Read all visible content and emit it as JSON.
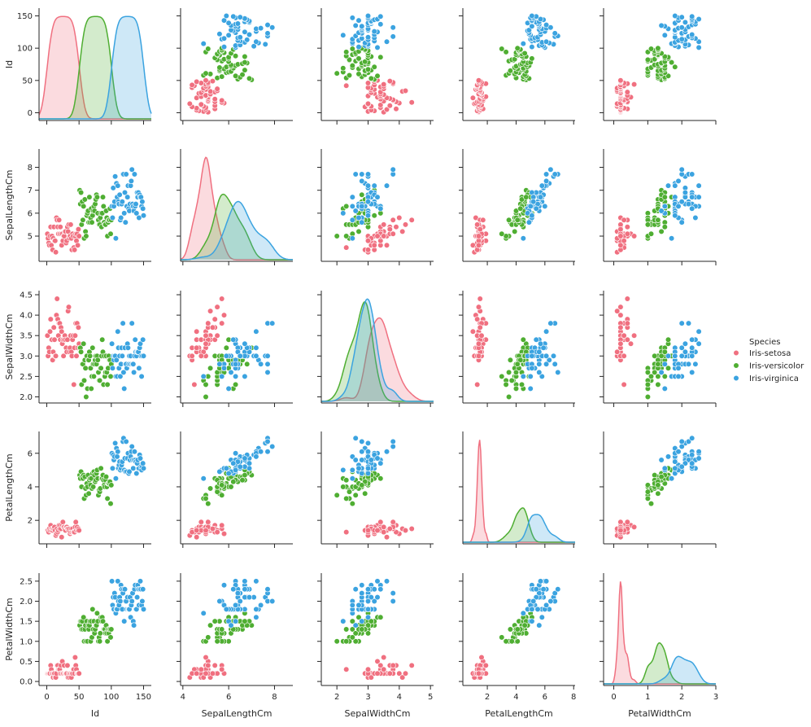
{
  "chart_data": {
    "type": "scatter",
    "variables": [
      "Id",
      "SepalLengthCm",
      "SepalWidthCm",
      "PetalLengthCm",
      "PetalWidthCm"
    ],
    "axes": {
      "Id": {
        "range": [
          -12,
          162
        ],
        "ticks": [
          0,
          50,
          100,
          150
        ],
        "tick_labels": [
          "0",
          "50",
          "100",
          "150"
        ]
      },
      "SepalLengthCm": {
        "range": [
          3.9,
          8.8
        ],
        "ticks": [
          4,
          6,
          8
        ],
        "tick_labels": [
          "4",
          "6",
          "8"
        ],
        "yticks": [
          5,
          6,
          7,
          8
        ],
        "ytick_labels": [
          "5",
          "6",
          "7",
          "8"
        ]
      },
      "SepalWidthCm": {
        "range": [
          1.5,
          5.1
        ],
        "ticks": [
          2,
          3,
          4,
          5
        ],
        "tick_labels": [
          "2",
          "3",
          "4",
          "5"
        ],
        "yrange": [
          1.85,
          4.6
        ],
        "yticks": [
          2.0,
          2.5,
          3.0,
          3.5,
          4.0,
          4.5
        ],
        "ytick_labels": [
          "2.0",
          "2.5",
          "3.0",
          "3.5",
          "4.0",
          "4.5"
        ]
      },
      "PetalLengthCm": {
        "range": [
          0.3,
          8.1
        ],
        "ticks": [
          2,
          4,
          6,
          8
        ],
        "tick_labels": [
          "2",
          "4",
          "6",
          "8"
        ],
        "yrange": [
          0.6,
          7.3
        ],
        "yticks": [
          2,
          4,
          6
        ],
        "ytick_labels": [
          "2",
          "4",
          "6"
        ]
      },
      "PetalWidthCm": {
        "range": [
          -0.3,
          3.0
        ],
        "ticks": [
          0,
          1,
          2,
          3
        ],
        "tick_labels": [
          "0",
          "1",
          "2",
          "3"
        ],
        "yrange": [
          -0.1,
          2.7
        ],
        "yticks": [
          0.0,
          0.5,
          1.0,
          1.5,
          2.0,
          2.5
        ],
        "ytick_labels": [
          "0.0",
          "0.5",
          "1.0",
          "1.5",
          "2.0",
          "2.5"
        ]
      }
    },
    "legend": {
      "title": "Species",
      "placement": "right",
      "entries": [
        {
          "name": "Iris-setosa",
          "color": "#f07080"
        },
        {
          "name": "Iris-versicolor",
          "color": "#4fae32"
        },
        {
          "name": "Iris-virginica",
          "color": "#3ba3e0"
        }
      ]
    },
    "series": [
      {
        "name": "Iris-setosa",
        "color": "#f07080",
        "Id": [
          1,
          2,
          3,
          4,
          5,
          6,
          7,
          8,
          9,
          10,
          11,
          12,
          13,
          14,
          15,
          16,
          17,
          18,
          19,
          20,
          21,
          22,
          23,
          24,
          25,
          26,
          27,
          28,
          29,
          30,
          31,
          32,
          33,
          34,
          35,
          36,
          37,
          38,
          39,
          40,
          41,
          42,
          43,
          44,
          45,
          46,
          47,
          48,
          49,
          50
        ],
        "SepalLengthCm": [
          5.1,
          4.9,
          4.7,
          4.6,
          5.0,
          5.4,
          4.6,
          5.0,
          4.4,
          4.9,
          5.4,
          4.8,
          4.8,
          4.3,
          5.8,
          5.7,
          5.4,
          5.1,
          5.7,
          5.1,
          5.4,
          5.1,
          4.6,
          5.1,
          4.8,
          5.0,
          5.0,
          5.2,
          5.2,
          4.7,
          4.8,
          5.4,
          5.2,
          5.5,
          4.9,
          5.0,
          5.5,
          4.9,
          4.4,
          5.1,
          5.0,
          4.5,
          4.4,
          5.0,
          5.1,
          4.8,
          5.1,
          4.6,
          5.3,
          5.0
        ],
        "SepalWidthCm": [
          3.5,
          3.0,
          3.2,
          3.1,
          3.6,
          3.9,
          3.4,
          3.4,
          2.9,
          3.1,
          3.7,
          3.4,
          3.0,
          3.0,
          4.0,
          4.4,
          3.9,
          3.5,
          3.8,
          3.8,
          3.4,
          3.7,
          3.6,
          3.3,
          3.4,
          3.0,
          3.4,
          3.5,
          3.4,
          3.2,
          3.1,
          3.4,
          4.1,
          4.2,
          3.1,
          3.2,
          3.5,
          3.1,
          3.0,
          3.4,
          3.5,
          2.3,
          3.2,
          3.5,
          3.8,
          3.0,
          3.8,
          3.2,
          3.7,
          3.3
        ],
        "PetalLengthCm": [
          1.4,
          1.4,
          1.3,
          1.5,
          1.4,
          1.7,
          1.4,
          1.5,
          1.4,
          1.5,
          1.5,
          1.6,
          1.4,
          1.1,
          1.2,
          1.5,
          1.3,
          1.4,
          1.7,
          1.5,
          1.7,
          1.5,
          1.0,
          1.7,
          1.9,
          1.6,
          1.6,
          1.5,
          1.4,
          1.6,
          1.6,
          1.5,
          1.5,
          1.4,
          1.5,
          1.2,
          1.3,
          1.5,
          1.3,
          1.5,
          1.3,
          1.3,
          1.3,
          1.6,
          1.9,
          1.4,
          1.6,
          1.4,
          1.5,
          1.4
        ],
        "PetalWidthCm": [
          0.2,
          0.2,
          0.2,
          0.2,
          0.2,
          0.4,
          0.3,
          0.2,
          0.2,
          0.1,
          0.2,
          0.2,
          0.1,
          0.1,
          0.2,
          0.4,
          0.4,
          0.3,
          0.3,
          0.3,
          0.2,
          0.4,
          0.2,
          0.5,
          0.2,
          0.2,
          0.4,
          0.2,
          0.2,
          0.2,
          0.2,
          0.4,
          0.1,
          0.2,
          0.1,
          0.2,
          0.2,
          0.1,
          0.2,
          0.2,
          0.3,
          0.3,
          0.2,
          0.6,
          0.4,
          0.3,
          0.2,
          0.2,
          0.2,
          0.2
        ]
      },
      {
        "name": "Iris-versicolor",
        "color": "#4fae32",
        "Id": [
          51,
          52,
          53,
          54,
          55,
          56,
          57,
          58,
          59,
          60,
          61,
          62,
          63,
          64,
          65,
          66,
          67,
          68,
          69,
          70,
          71,
          72,
          73,
          74,
          75,
          76,
          77,
          78,
          79,
          80,
          81,
          82,
          83,
          84,
          85,
          86,
          87,
          88,
          89,
          90,
          91,
          92,
          93,
          94,
          95,
          96,
          97,
          98,
          99,
          100
        ],
        "SepalLengthCm": [
          7.0,
          6.4,
          6.9,
          5.5,
          6.5,
          5.7,
          6.3,
          4.9,
          6.6,
          5.2,
          5.0,
          5.9,
          6.0,
          6.1,
          5.6,
          6.7,
          5.6,
          5.8,
          6.2,
          5.6,
          5.9,
          6.1,
          6.3,
          6.1,
          6.4,
          6.6,
          6.8,
          6.7,
          6.0,
          5.7,
          5.5,
          5.5,
          5.8,
          6.0,
          5.4,
          6.0,
          6.7,
          6.3,
          5.6,
          5.5,
          5.5,
          6.1,
          5.8,
          5.0,
          5.6,
          5.7,
          5.7,
          6.2,
          5.1,
          5.7
        ],
        "SepalWidthCm": [
          3.2,
          3.2,
          3.1,
          2.3,
          2.8,
          2.8,
          3.3,
          2.4,
          2.9,
          2.7,
          2.0,
          3.0,
          2.2,
          2.9,
          2.9,
          3.1,
          3.0,
          2.7,
          2.2,
          2.5,
          3.2,
          2.8,
          2.5,
          2.8,
          2.9,
          3.0,
          2.8,
          3.0,
          2.9,
          2.6,
          2.4,
          2.4,
          2.7,
          2.7,
          3.0,
          3.4,
          3.1,
          2.3,
          3.0,
          2.5,
          2.6,
          3.0,
          2.6,
          2.3,
          2.7,
          3.0,
          2.9,
          2.9,
          2.5,
          2.8
        ],
        "PetalLengthCm": [
          4.7,
          4.5,
          4.9,
          4.0,
          4.6,
          4.5,
          4.7,
          3.3,
          4.6,
          3.9,
          3.5,
          4.2,
          4.0,
          4.7,
          3.6,
          4.4,
          4.5,
          4.1,
          4.5,
          3.9,
          4.8,
          4.0,
          4.9,
          4.7,
          4.3,
          4.4,
          4.8,
          5.0,
          4.5,
          3.5,
          3.8,
          3.7,
          3.9,
          5.1,
          4.5,
          4.5,
          4.7,
          4.4,
          4.1,
          4.0,
          4.4,
          4.6,
          4.0,
          3.3,
          4.2,
          4.2,
          4.2,
          4.3,
          3.0,
          4.1
        ],
        "PetalWidthCm": [
          1.4,
          1.5,
          1.5,
          1.3,
          1.5,
          1.3,
          1.6,
          1.0,
          1.3,
          1.4,
          1.0,
          1.5,
          1.0,
          1.4,
          1.3,
          1.4,
          1.5,
          1.0,
          1.5,
          1.1,
          1.8,
          1.3,
          1.5,
          1.2,
          1.3,
          1.4,
          1.4,
          1.7,
          1.5,
          1.0,
          1.1,
          1.0,
          1.2,
          1.6,
          1.5,
          1.6,
          1.5,
          1.3,
          1.3,
          1.3,
          1.2,
          1.4,
          1.2,
          1.0,
          1.3,
          1.2,
          1.3,
          1.3,
          1.1,
          1.3
        ]
      },
      {
        "name": "Iris-virginica",
        "color": "#3ba3e0",
        "Id": [
          101,
          102,
          103,
          104,
          105,
          106,
          107,
          108,
          109,
          110,
          111,
          112,
          113,
          114,
          115,
          116,
          117,
          118,
          119,
          120,
          121,
          122,
          123,
          124,
          125,
          126,
          127,
          128,
          129,
          130,
          131,
          132,
          133,
          134,
          135,
          136,
          137,
          138,
          139,
          140,
          141,
          142,
          143,
          144,
          145,
          146,
          147,
          148,
          149,
          150
        ],
        "SepalLengthCm": [
          6.3,
          5.8,
          7.1,
          6.3,
          6.5,
          7.6,
          4.9,
          7.3,
          6.7,
          7.2,
          6.5,
          6.4,
          6.8,
          5.7,
          5.8,
          6.4,
          6.5,
          7.7,
          7.7,
          6.0,
          6.9,
          5.6,
          7.7,
          6.3,
          6.7,
          7.2,
          6.2,
          6.1,
          6.4,
          7.2,
          7.4,
          7.9,
          6.4,
          6.3,
          6.1,
          7.7,
          6.3,
          6.4,
          6.0,
          6.9,
          6.7,
          6.9,
          5.8,
          6.8,
          6.7,
          6.7,
          6.3,
          6.5,
          6.2,
          5.9
        ],
        "SepalWidthCm": [
          3.3,
          2.7,
          3.0,
          2.9,
          3.0,
          3.0,
          2.5,
          2.9,
          2.5,
          3.6,
          3.2,
          2.7,
          3.0,
          2.5,
          2.8,
          3.2,
          3.0,
          3.8,
          2.6,
          2.2,
          3.2,
          2.8,
          2.8,
          2.7,
          3.3,
          3.2,
          2.8,
          3.0,
          2.8,
          3.0,
          2.8,
          3.8,
          2.8,
          2.8,
          2.6,
          3.0,
          3.4,
          3.1,
          3.0,
          3.1,
          3.1,
          3.1,
          2.7,
          3.2,
          3.3,
          3.0,
          2.5,
          3.0,
          3.4,
          3.0
        ],
        "PetalLengthCm": [
          6.0,
          5.1,
          5.9,
          5.6,
          5.8,
          6.6,
          4.5,
          6.3,
          5.8,
          6.1,
          5.1,
          5.3,
          5.5,
          5.0,
          5.1,
          5.3,
          5.5,
          6.7,
          6.9,
          5.0,
          5.7,
          4.9,
          6.7,
          4.9,
          5.7,
          6.0,
          4.8,
          4.9,
          5.6,
          5.8,
          6.1,
          6.4,
          5.6,
          5.1,
          5.6,
          6.1,
          5.6,
          5.5,
          4.8,
          5.4,
          5.6,
          5.1,
          5.1,
          5.9,
          5.7,
          5.2,
          5.0,
          5.2,
          5.4,
          5.1
        ],
        "PetalWidthCm": [
          2.5,
          1.9,
          2.1,
          1.8,
          2.2,
          2.1,
          1.7,
          1.8,
          1.8,
          2.5,
          2.0,
          1.9,
          2.1,
          2.0,
          2.4,
          2.3,
          1.8,
          2.2,
          2.3,
          1.5,
          2.3,
          2.0,
          2.0,
          1.8,
          2.1,
          1.8,
          1.8,
          1.8,
          2.1,
          1.6,
          1.9,
          2.0,
          2.2,
          1.5,
          1.4,
          2.3,
          2.4,
          1.8,
          1.8,
          2.1,
          2.4,
          2.3,
          1.9,
          2.3,
          2.5,
          2.3,
          1.9,
          2.0,
          2.3,
          1.8
        ]
      }
    ]
  }
}
